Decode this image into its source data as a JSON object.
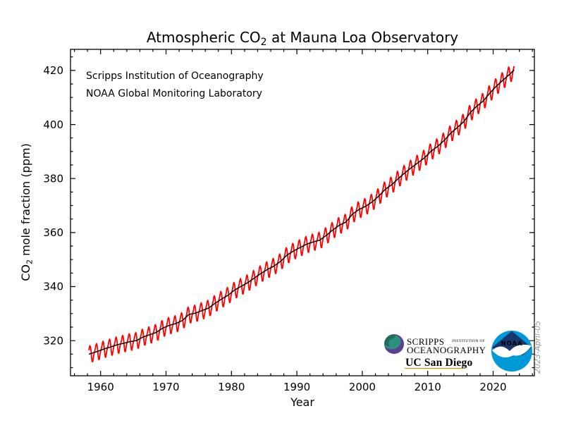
{
  "figure": {
    "title": {
      "prefix": "Atmospheric CO",
      "sub": "2",
      "suffix": " at Mauna Loa Observatory"
    },
    "xlabel": "Year",
    "ylabel": {
      "prefix": "CO",
      "sub": "2",
      "suffix": " mole fraction (ppm)"
    },
    "annotations": {
      "line1": "Scripps Institution of Oceanography",
      "line2": "NOAA Global Monitoring Laboratory"
    },
    "date_note": "2023-April-05"
  },
  "axes": {
    "x": {
      "min": 1955.4,
      "max": 2026.3,
      "major_ticks": [
        1960,
        1970,
        1980,
        1990,
        2000,
        2010,
        2020
      ],
      "minor_start": 1956,
      "minor_end": 2026,
      "minor_step": 2
    },
    "y": {
      "min": 307,
      "max": 427.8,
      "major_ticks": [
        320,
        340,
        360,
        380,
        400,
        420
      ],
      "minor_start": 310,
      "minor_end": 425,
      "minor_step": 5
    }
  },
  "colors": {
    "monthly_line": "#ff0000",
    "trend_line": "#000000",
    "frame": "#000000",
    "date_note": "#999999"
  },
  "logos": {
    "scripps": {
      "name1": "SCRIPPS",
      "name1_small": "INSTITUTION OF",
      "name2": "OCEANOGRAPHY",
      "university": "UC San Diego",
      "navy": "#1E3A6E",
      "ucsd_navy": "#182B49",
      "gold": "#C69214",
      "globe_purple": "#5A4192",
      "globe_teal": "#2E8F7F",
      "globe_dark": "#1F6B5C",
      "globe_highlight": "#E8EDF5"
    },
    "noaa": {
      "label": "NOAA",
      "light_blue": "#0099D8",
      "dark_blue": "#16376E",
      "bird_white": "#ffffff"
    }
  },
  "chart_data": {
    "type": "line",
    "title": "Atmospheric CO2 at Mauna Loa Observatory",
    "xlabel": "Year",
    "ylabel": "CO2 mole fraction (ppm)",
    "xlim": [
      1955.4,
      2026.3
    ],
    "ylim": [
      307,
      427.8
    ],
    "x_major_ticks": [
      1960,
      1970,
      1980,
      1990,
      2000,
      2010,
      2020
    ],
    "y_major_ticks": [
      320,
      340,
      360,
      380,
      400,
      420
    ],
    "grid": false,
    "legend": "none",
    "series": [
      {
        "name": "monthly mean CO2",
        "color": "#ff0000",
        "style": "seasonal sawtooth = trend + seasonal_cycle offset"
      },
      {
        "name": "deseasonalized trend",
        "color": "#000000",
        "style": "smooth line through annual means"
      }
    ],
    "data_start_decimal_year": 1958.2,
    "data_end_decimal_year": 2023.25,
    "trend_years": [
      1958,
      1959,
      1960,
      1961,
      1962,
      1963,
      1964,
      1965,
      1966,
      1967,
      1968,
      1969,
      1970,
      1971,
      1972,
      1973,
      1974,
      1975,
      1976,
      1977,
      1978,
      1979,
      1980,
      1981,
      1982,
      1983,
      1984,
      1985,
      1986,
      1987,
      1988,
      1989,
      1990,
      1991,
      1992,
      1993,
      1994,
      1995,
      1996,
      1997,
      1998,
      1999,
      2000,
      2001,
      2002,
      2003,
      2004,
      2005,
      2006,
      2007,
      2008,
      2009,
      2010,
      2011,
      2012,
      2013,
      2014,
      2015,
      2016,
      2017,
      2018,
      2019,
      2020,
      2021,
      2022,
      2023
    ],
    "trend_annual_mean_ppm": [
      315.23,
      315.98,
      316.91,
      317.64,
      318.45,
      318.99,
      319.62,
      320.04,
      321.37,
      322.18,
      323.05,
      324.62,
      325.68,
      326.32,
      327.46,
      329.68,
      330.19,
      331.12,
      332.03,
      333.84,
      335.41,
      336.84,
      338.76,
      340.12,
      341.48,
      343.15,
      344.87,
      346.35,
      347.61,
      349.31,
      351.69,
      353.2,
      354.45,
      355.7,
      356.54,
      357.21,
      358.96,
      360.97,
      362.74,
      363.88,
      366.84,
      368.54,
      369.71,
      371.32,
      373.45,
      375.98,
      377.7,
      379.98,
      382.09,
      384.02,
      385.83,
      387.64,
      390.1,
      391.85,
      394.06,
      396.74,
      398.81,
      401.01,
      404.41,
      406.76,
      408.72,
      411.65,
      414.21,
      416.41,
      418.53,
      420.9
    ],
    "seasonal_cycle_monthly_offset_ppm": [
      0.0,
      0.66,
      1.4,
      2.55,
      3.0,
      2.35,
      0.75,
      -1.55,
      -3.1,
      -3.25,
      -2.05,
      -0.9
    ]
  }
}
